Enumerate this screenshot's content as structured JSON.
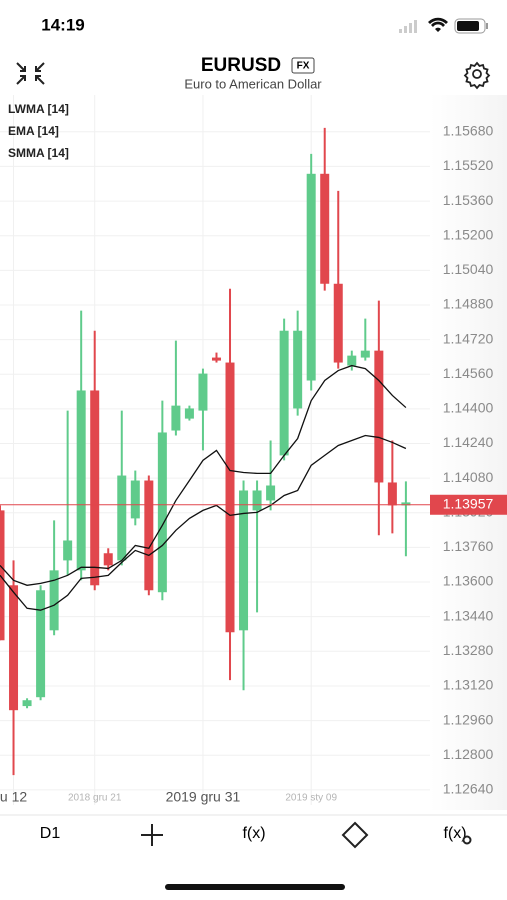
{
  "status_bar": {
    "time": "14:19"
  },
  "header": {
    "title": "EURUSD",
    "badge": "FX",
    "subtitle": "Euro to American Dollar"
  },
  "chart_data": {
    "type": "candlestick",
    "categories": [
      null,
      "u 12",
      null,
      null,
      null,
      null,
      null,
      "2018 gru 21",
      null,
      null,
      null,
      null,
      null,
      null,
      null,
      "2019 gru 31",
      null,
      null,
      null,
      null,
      null,
      null,
      null,
      "2019 sty 09",
      null,
      null,
      null,
      null,
      null,
      null,
      null
    ],
    "open": [
      1.13931,
      1.13585,
      1.13027,
      1.13068,
      1.13377,
      1.137,
      1.13654,
      1.14485,
      1.13733,
      1.137,
      1.13894,
      1.14069,
      1.13553,
      1.143,
      1.14355,
      1.14392,
      1.14637,
      1.14614,
      1.13377,
      1.13931,
      1.13977,
      1.14185,
      1.14402,
      1.14531,
      1.15486,
      1.14978,
      1.146,
      1.14637,
      1.14669,
      1.1406,
      1.13954
    ],
    "high": [
      1.13954,
      1.137,
      1.13063,
      1.13585,
      1.13885,
      1.14392,
      1.14854,
      1.14761,
      1.13756,
      1.14392,
      1.14115,
      1.14092,
      1.14438,
      1.14715,
      1.14415,
      1.14586,
      1.1466,
      1.14955,
      1.14069,
      1.14069,
      1.14254,
      1.14817,
      1.14854,
      1.15578,
      1.15698,
      1.15407,
      1.14669,
      1.14817,
      1.149,
      1.14254,
      1.14065
    ],
    "low": [
      1.13331,
      1.12708,
      1.13017,
      1.13054,
      1.13354,
      1.13631,
      1.13608,
      1.13562,
      1.13654,
      1.13677,
      1.13862,
      1.13539,
      1.13516,
      1.14277,
      1.14346,
      1.14208,
      1.14614,
      1.13147,
      1.131,
      1.1346,
      1.13931,
      1.14162,
      1.14369,
      1.14485,
      1.14946,
      1.14586,
      1.14577,
      1.14623,
      1.13816,
      1.13825,
      1.13719
    ],
    "close": [
      1.13331,
      1.13008,
      1.13054,
      1.13562,
      1.13654,
      1.13792,
      1.14485,
      1.13585,
      1.13677,
      1.14092,
      1.14069,
      1.13562,
      1.14291,
      1.14415,
      1.14402,
      1.14563,
      1.14623,
      1.13368,
      1.14023,
      1.14023,
      1.14046,
      1.14761,
      1.14761,
      1.15486,
      1.14978,
      1.14614,
      1.14646,
      1.14669,
      1.1406,
      1.13954,
      1.13968
    ],
    "up_color": "#5fcb8b",
    "down_color": "#e1474d",
    "indicators": [
      "LWMA [14]",
      "EMA [14]",
      "SMMA [14]"
    ],
    "lines": [
      {
        "color": "#111111",
        "values": [
          1.13677,
          1.13608,
          1.13585,
          1.13594,
          1.13608,
          1.13631,
          1.13668,
          1.13668,
          1.13663,
          1.137,
          1.13769,
          1.13756,
          1.13862,
          1.13977,
          1.14069,
          1.14162,
          1.14208,
          1.14115,
          1.14106,
          1.14102,
          1.14102,
          1.14185,
          1.14263,
          1.14438,
          1.14531,
          1.14577,
          1.146,
          1.14586,
          1.14531,
          1.14462,
          1.14406
        ]
      },
      {
        "color": "#111111",
        "values": [
          1.13631,
          1.13553,
          1.13479,
          1.1347,
          1.13493,
          1.13539,
          1.13617,
          1.13622,
          1.13631,
          1.13691,
          1.13746,
          1.13723,
          1.13769,
          1.13839,
          1.13894,
          1.13931,
          1.13954,
          1.13908,
          1.13917,
          1.13922,
          1.13954,
          1.14,
          1.14023,
          1.14139,
          1.14185,
          1.14231,
          1.14254,
          1.14277,
          1.14268,
          1.14245,
          1.14217
        ]
      }
    ],
    "last_price": 1.13957,
    "last_price_color": "#e1474d",
    "ylim": [
      1.1257,
      1.1585
    ],
    "yticks": [
      {
        "value": 1.1568,
        "label": "1.15680"
      },
      {
        "value": 1.1552,
        "label": "1.15520"
      },
      {
        "value": 1.1536,
        "label": "1.15360"
      },
      {
        "value": 1.152,
        "label": "1.15200"
      },
      {
        "value": 1.1504,
        "label": "1.15040"
      },
      {
        "value": 1.1488,
        "label": "1.14880"
      },
      {
        "value": 1.1472,
        "label": "1.14720"
      },
      {
        "value": 1.1456,
        "label": "1.14560"
      },
      {
        "value": 1.144,
        "label": "1.14400"
      },
      {
        "value": 1.1424,
        "label": "1.14240"
      },
      {
        "value": 1.1408,
        "label": "1.14080"
      },
      {
        "value": 1.1392,
        "label": "1.13920"
      },
      {
        "value": 1.1376,
        "label": "1.13760"
      },
      {
        "value": 1.136,
        "label": "1.13600"
      },
      {
        "value": 1.1344,
        "label": "1.13440"
      },
      {
        "value": 1.1328,
        "label": "1.13280"
      },
      {
        "value": 1.1312,
        "label": "1.13120"
      },
      {
        "value": 1.1296,
        "label": "1.12960"
      },
      {
        "value": 1.128,
        "label": "1.12800"
      },
      {
        "value": 1.1264,
        "label": "1.12640"
      }
    ],
    "grid": true
  },
  "toolbar": {
    "timeframe": "D1",
    "function": "f(x)",
    "function_settings": "f(x)"
  }
}
